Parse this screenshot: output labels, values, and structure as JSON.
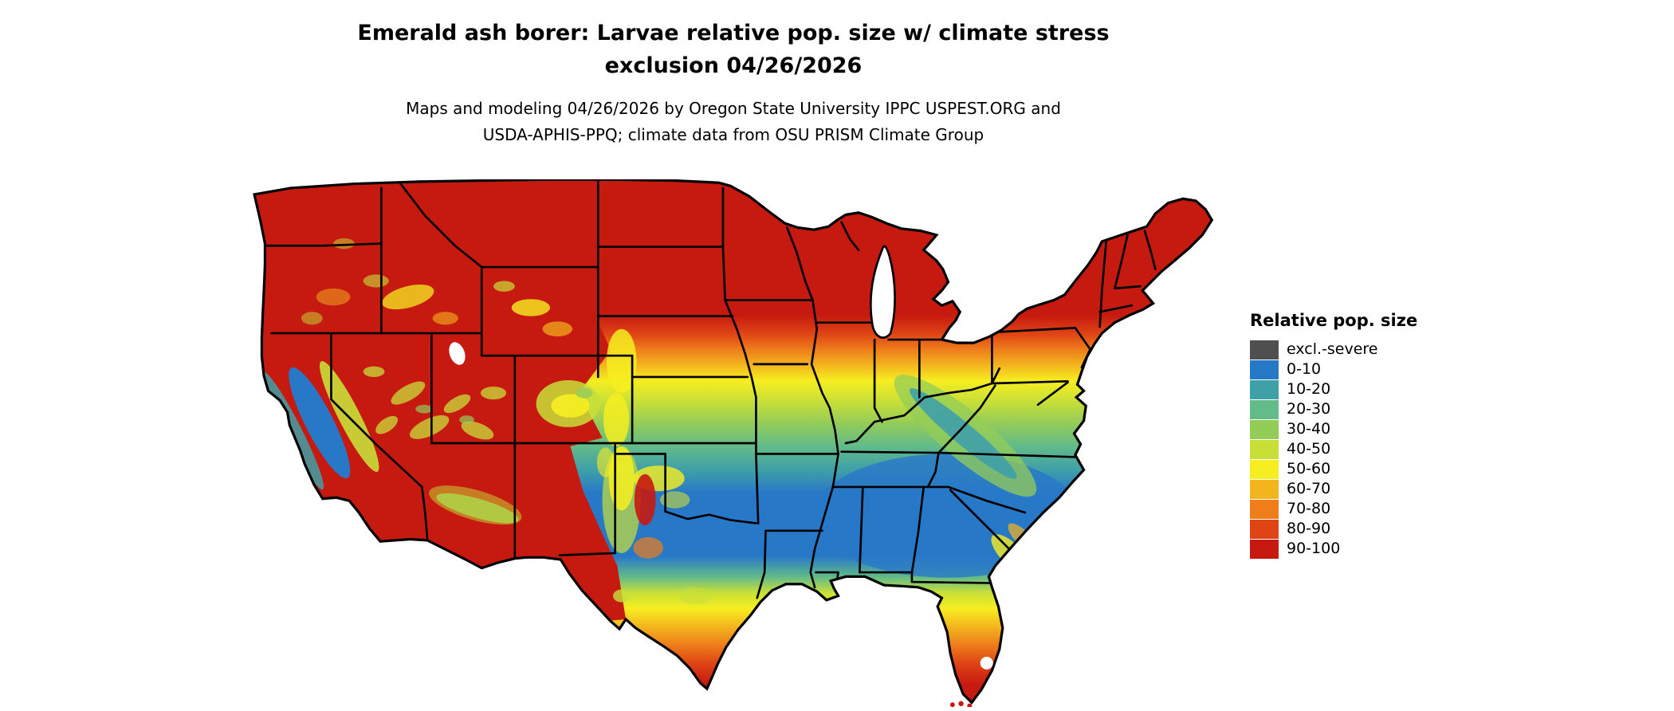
{
  "header": {
    "title_line1": "Emerald ash borer: Larvae relative pop. size w/ climate stress",
    "title_line2": "exclusion 04/26/2026",
    "subtitle_line1": "Maps and modeling 04/26/2026 by Oregon State University IPPC USPEST.ORG and",
    "subtitle_line2": "USDA-APHIS-PPQ; climate data from OSU PRISM Climate Group"
  },
  "legend": {
    "title": "Relative pop. size",
    "items": [
      {
        "label": "excl.-severe",
        "color": "#4f4f4f"
      },
      {
        "label": "0-10",
        "color": "#2878c8"
      },
      {
        "label": "10-20",
        "color": "#3fa0a8"
      },
      {
        "label": "20-30",
        "color": "#62bb89"
      },
      {
        "label": "30-40",
        "color": "#94cc58"
      },
      {
        "label": "40-50",
        "color": "#c8df38"
      },
      {
        "label": "50-60",
        "color": "#f6ee20"
      },
      {
        "label": "60-70",
        "color": "#f3b51e"
      },
      {
        "label": "70-80",
        "color": "#ee7d1a"
      },
      {
        "label": "80-90",
        "color": "#df4415"
      },
      {
        "label": "90-100",
        "color": "#c61a10"
      }
    ]
  }
}
